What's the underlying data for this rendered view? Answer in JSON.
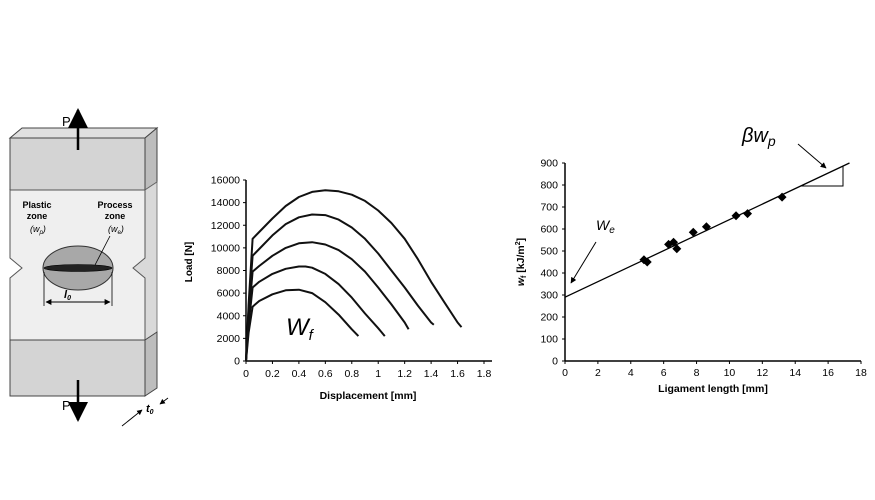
{
  "specimen": {
    "load_top": "P",
    "load_bottom": "P",
    "plastic_zone_line1": "Plastic",
    "plastic_zone_line2": "zone",
    "plastic_zone_symbol": "(w",
    "plastic_zone_sub": "p",
    "process_zone_line1": "Process",
    "process_zone_line2": "zone",
    "process_zone_symbol": "(w",
    "process_zone_sub": "e",
    "ligament_label": "l",
    "ligament_sub": "0",
    "thickness_label": "t",
    "thickness_sub": "0"
  },
  "chart_data": [
    {
      "type": "line",
      "xlabel": "Displacement [mm]",
      "ylabel": "Load [N]",
      "xlim": [
        0,
        1.8
      ],
      "ylim": [
        0,
        16000
      ],
      "xticks": [
        0,
        0.2,
        0.4,
        0.6,
        0.8,
        1,
        1.2,
        1.4,
        1.6,
        1.8
      ],
      "xtick_labels": [
        "0",
        "0.2",
        "0.4",
        "0.6",
        "0.8",
        "1",
        "1.2",
        "1.4",
        "1.6",
        "1.8"
      ],
      "yticks": [
        0,
        2000,
        4000,
        6000,
        8000,
        10000,
        12000,
        14000,
        16000
      ],
      "ytick_labels": [
        "0",
        "2000",
        "4000",
        "6000",
        "8000",
        "10000",
        "12000",
        "14000",
        "16000"
      ],
      "annotation": {
        "text": "W",
        "sub": "f"
      },
      "series": [
        {
          "x": [
            0,
            0.02,
            0.05,
            0.1,
            0.2,
            0.3,
            0.4,
            0.5,
            0.6,
            0.7,
            0.8,
            0.9,
            1.0,
            1.1,
            1.2,
            1.3,
            1.4,
            1.5,
            1.6,
            1.63
          ],
          "y": [
            0,
            5000,
            10800,
            11400,
            12600,
            13700,
            14500,
            14950,
            15100,
            15000,
            14700,
            14150,
            13300,
            12200,
            10800,
            9000,
            7000,
            5200,
            3400,
            3000
          ]
        },
        {
          "x": [
            0,
            0.02,
            0.05,
            0.1,
            0.2,
            0.3,
            0.4,
            0.5,
            0.6,
            0.7,
            0.8,
            0.9,
            1.0,
            1.1,
            1.2,
            1.3,
            1.4,
            1.42
          ],
          "y": [
            0,
            4500,
            9300,
            9900,
            11100,
            12100,
            12700,
            12950,
            12900,
            12500,
            11800,
            10800,
            9500,
            8000,
            6500,
            4900,
            3400,
            3200
          ]
        },
        {
          "x": [
            0,
            0.02,
            0.05,
            0.1,
            0.2,
            0.3,
            0.4,
            0.5,
            0.6,
            0.7,
            0.8,
            0.9,
            1.0,
            1.1,
            1.2,
            1.23
          ],
          "y": [
            0,
            3800,
            7900,
            8400,
            9300,
            10000,
            10400,
            10500,
            10300,
            9800,
            9000,
            7900,
            6500,
            5000,
            3400,
            2800
          ]
        },
        {
          "x": [
            0,
            0.02,
            0.05,
            0.1,
            0.2,
            0.3,
            0.4,
            0.45,
            0.5,
            0.6,
            0.7,
            0.8,
            0.9,
            1.0,
            1.05
          ],
          "y": [
            0,
            3200,
            6500,
            7000,
            7700,
            8150,
            8350,
            8350,
            8250,
            7700,
            6800,
            5600,
            4200,
            2900,
            2200
          ]
        },
        {
          "x": [
            0,
            0.02,
            0.05,
            0.1,
            0.2,
            0.3,
            0.4,
            0.5,
            0.6,
            0.7,
            0.8,
            0.85
          ],
          "y": [
            0,
            2500,
            4800,
            5300,
            5900,
            6250,
            6300,
            6000,
            5200,
            4100,
            2800,
            2200
          ]
        }
      ]
    },
    {
      "type": "scatter",
      "xlabel": "Ligament length [mm]",
      "ylabel": "w",
      "ylabel_sub": "f",
      "ylabel_unit": " [kJ/m",
      "ylabel_sup": "2",
      "ylabel_end": "]",
      "xlim": [
        0,
        18
      ],
      "ylim": [
        0,
        900
      ],
      "xticks": [
        0,
        2,
        4,
        6,
        8,
        10,
        12,
        14,
        16,
        18
      ],
      "xtick_labels": [
        "0",
        "2",
        "4",
        "6",
        "8",
        "10",
        "12",
        "14",
        "16",
        "18"
      ],
      "yticks": [
        0,
        100,
        200,
        300,
        400,
        500,
        600,
        700,
        800,
        900
      ],
      "ytick_labels": [
        "0",
        "100",
        "200",
        "300",
        "400",
        "500",
        "600",
        "700",
        "800",
        "900"
      ],
      "points": [
        {
          "x": 4.8,
          "y": 460
        },
        {
          "x": 5.0,
          "y": 450
        },
        {
          "x": 6.3,
          "y": 530
        },
        {
          "x": 6.6,
          "y": 540
        },
        {
          "x": 6.8,
          "y": 510
        },
        {
          "x": 7.8,
          "y": 585
        },
        {
          "x": 8.6,
          "y": 610
        },
        {
          "x": 10.4,
          "y": 660
        },
        {
          "x": 11.1,
          "y": 670
        },
        {
          "x": 13.2,
          "y": 745
        }
      ],
      "fit_line": {
        "x": [
          0,
          17.3
        ],
        "y": [
          290,
          900
        ]
      },
      "annotations": {
        "intercept": {
          "text": "W",
          "sub": "e"
        },
        "slope": {
          "text": "βw",
          "sub": "p"
        }
      }
    }
  ]
}
